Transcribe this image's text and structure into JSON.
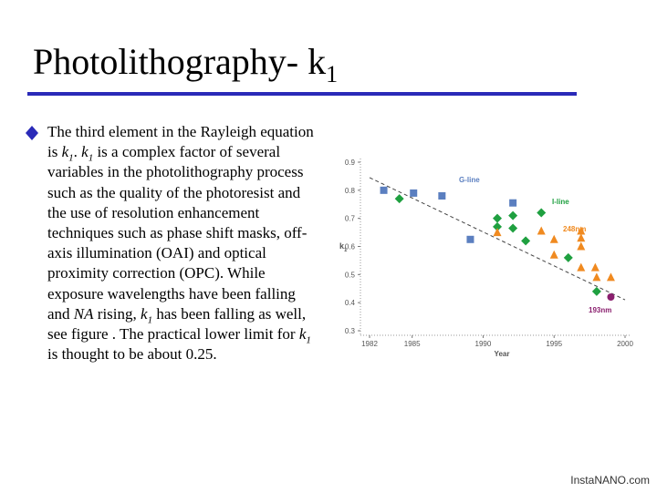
{
  "header": {
    "title": "Photolithography- k",
    "title_sub": "1"
  },
  "body": {
    "segments": [
      "The third element in the Rayleigh equation is ",
      "k",
      "1",
      ". ",
      "k",
      "1",
      " is a complex factor of several variables in the photolithography process such as the quality of the photoresist and the use of resolution enhancement techniques such as phase shift masks, off-axis illumination (OAI) and optical proximity correction (OPC). While exposure wavelengths have been falling and ",
      "NA",
      " rising, ",
      "k",
      "1",
      " has been falling as well, see figure . The practical lower limit for ",
      "k",
      "1",
      " is thought to be  about 0.25."
    ]
  },
  "chart_data": {
    "type": "scatter",
    "xlabel": "Year",
    "ylabel": "k",
    "ylabel_sub": "1",
    "xlim": [
      1982,
      2000
    ],
    "xticks": [
      1982,
      1985,
      1990,
      1995,
      2000
    ],
    "ylim": [
      0.3,
      0.9
    ],
    "yticks": [
      0.3,
      0.4,
      0.5,
      0.6,
      0.7,
      0.8,
      0.9
    ],
    "series": [
      {
        "name": "G-line",
        "color": "#5b7fc0",
        "marker": "square",
        "x": [
          1983.0,
          1985.1,
          1987.1,
          1989.1,
          1992.1
        ],
        "values": [
          0.8,
          0.79,
          0.78,
          0.625,
          0.755
        ]
      },
      {
        "name": "I-line",
        "color": "#1fa040",
        "marker": "diamond",
        "x": [
          1984.1,
          1991.0,
          1991.0,
          1992.1,
          1992.1,
          1993.0,
          1994.1,
          1996.0,
          1998.0
        ],
        "values": [
          0.77,
          0.7,
          0.67,
          0.71,
          0.665,
          0.62,
          0.72,
          0.56,
          0.44
        ]
      },
      {
        "name": "248nm",
        "color": "#f08a20",
        "marker": "triangle",
        "x": [
          1991.0,
          1994.1,
          1995.0,
          1995.0,
          1996.9,
          1996.9,
          1996.9,
          1996.9,
          1997.9,
          1998.0,
          1999.0
        ],
        "values": [
          0.65,
          0.655,
          0.625,
          0.57,
          0.655,
          0.63,
          0.6,
          0.525,
          0.525,
          0.49,
          0.49
        ]
      },
      {
        "name": "193nm",
        "color": "#8a1f6e",
        "marker": "circle",
        "x": [
          1999.0
        ],
        "values": [
          0.42
        ]
      }
    ],
    "trendline": {
      "x": [
        1982,
        2000
      ],
      "values": [
        0.845,
        0.41
      ]
    }
  },
  "footer": {
    "text": "InstaNANO.com"
  }
}
